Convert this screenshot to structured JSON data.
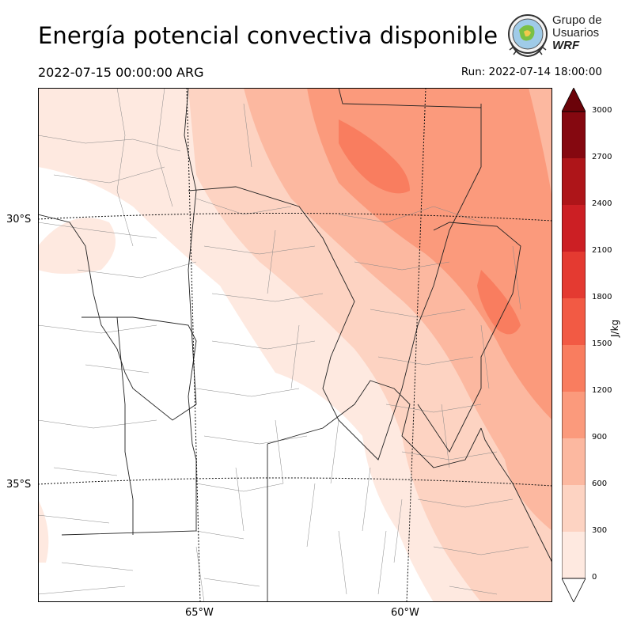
{
  "title": "Energía potencial convectiva disponible",
  "valid_time": "2022-07-15 00:00:00 ARG",
  "run_time": "Run: 2022-07-14 18:00:00",
  "logo": {
    "line1": "Grupo de",
    "line2": "Usuarios",
    "line3": "WRF"
  },
  "map": {
    "lat_labels": [
      "30°S",
      "35°S"
    ],
    "lon_labels": [
      "65°W",
      "60°W"
    ],
    "field": "CAPE"
  },
  "colorbar": {
    "unit": "J/kg",
    "ticks": [
      "0",
      "300",
      "600",
      "900",
      "1200",
      "1500",
      "1800",
      "2100",
      "2400",
      "2700",
      "3000"
    ],
    "colors": [
      "#fee9e0",
      "#fdd3c2",
      "#fcb8a0",
      "#fb9a7c",
      "#f97d5f",
      "#f25a44",
      "#e43a31",
      "#cc1f24",
      "#ae1519",
      "#850810"
    ],
    "extend": "both"
  }
}
